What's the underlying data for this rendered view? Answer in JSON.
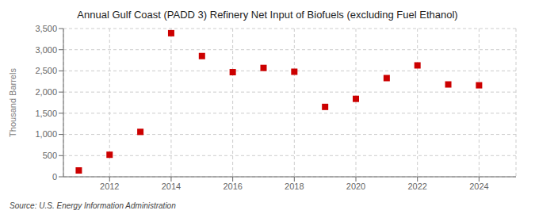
{
  "chart_data": {
    "type": "scatter",
    "title": "Annual Gulf Coast (PADD 3) Refinery Net Input of Biofuels (excluding Fuel Ethanol)",
    "y_label": "Thousand Barrels",
    "annotations": [
      "Source: U.S. Energy Information Administration"
    ],
    "x": [
      2011,
      2012,
      2013,
      2014,
      2015,
      2016,
      2017,
      2018,
      2019,
      2020,
      2021,
      2022,
      2023,
      2024
    ],
    "values": [
      150,
      520,
      1060,
      3390,
      2850,
      2470,
      2570,
      2480,
      1650,
      1840,
      2330,
      2630,
      2180,
      2160
    ],
    "color": "#cc0000",
    "marker": "square",
    "xlim": [
      2010.5,
      2025.2
    ],
    "xticks": [
      2012,
      2014,
      2016,
      2018,
      2020,
      2022,
      2024
    ],
    "ylim": [
      0,
      3500
    ],
    "yticks": [
      0,
      500,
      {
        "value": 1000,
        "label": "1,000"
      },
      {
        "value": 1500,
        "label": "1,500"
      },
      {
        "value": 2000,
        "label": "2,000"
      },
      {
        "value": 2500,
        "label": "2,500"
      },
      {
        "value": 3000,
        "label": "3,000"
      },
      {
        "value": 3500,
        "label": "3,500"
      }
    ],
    "grid": true
  }
}
